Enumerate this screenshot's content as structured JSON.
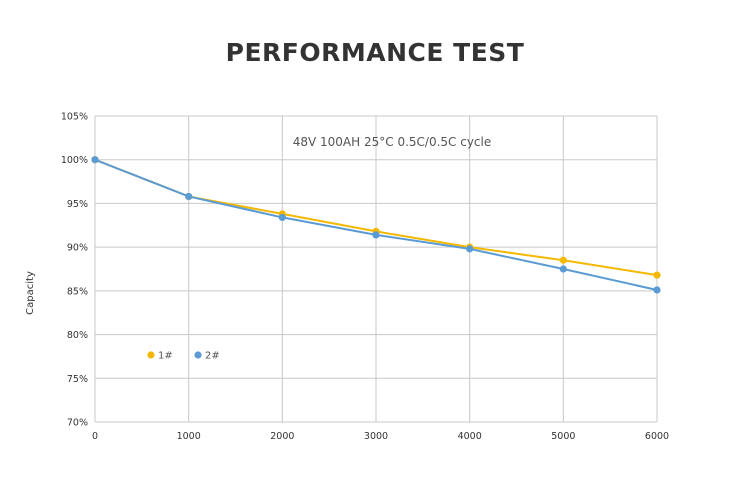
{
  "page": {
    "title": "PERFORMANCE TEST"
  },
  "chart_data": {
    "type": "line",
    "title": "PERFORMANCE TEST",
    "annotation": "48V 100AH 25°C 0.5C/0.5C cycle",
    "xlabel": "",
    "ylabel": "Capacity",
    "x": [
      0,
      1000,
      2000,
      3000,
      4000,
      5000,
      6000
    ],
    "xlim": [
      0,
      6000
    ],
    "ylim": [
      70,
      105
    ],
    "x_ticks": [
      0,
      1000,
      2000,
      3000,
      4000,
      5000,
      6000
    ],
    "x_tick_labels": [
      "0",
      "1000",
      "2000",
      "3000",
      "4000",
      "5000",
      "6000"
    ],
    "y_ticks": [
      70,
      75,
      80,
      85,
      90,
      95,
      100,
      105
    ],
    "y_tick_labels": [
      "70%",
      "75%",
      "80%",
      "85%",
      "90%",
      "95%",
      "100%",
      "105%"
    ],
    "grid": true,
    "legend_position": "bottom-left",
    "series": [
      {
        "name": "1#",
        "color": "#F5B800",
        "values": [
          100,
          95.8,
          93.8,
          91.8,
          90.0,
          88.5,
          86.8
        ]
      },
      {
        "name": "2#",
        "color": "#5B9BD5",
        "values": [
          100,
          95.8,
          93.4,
          91.4,
          89.8,
          87.5,
          85.1
        ]
      }
    ]
  }
}
